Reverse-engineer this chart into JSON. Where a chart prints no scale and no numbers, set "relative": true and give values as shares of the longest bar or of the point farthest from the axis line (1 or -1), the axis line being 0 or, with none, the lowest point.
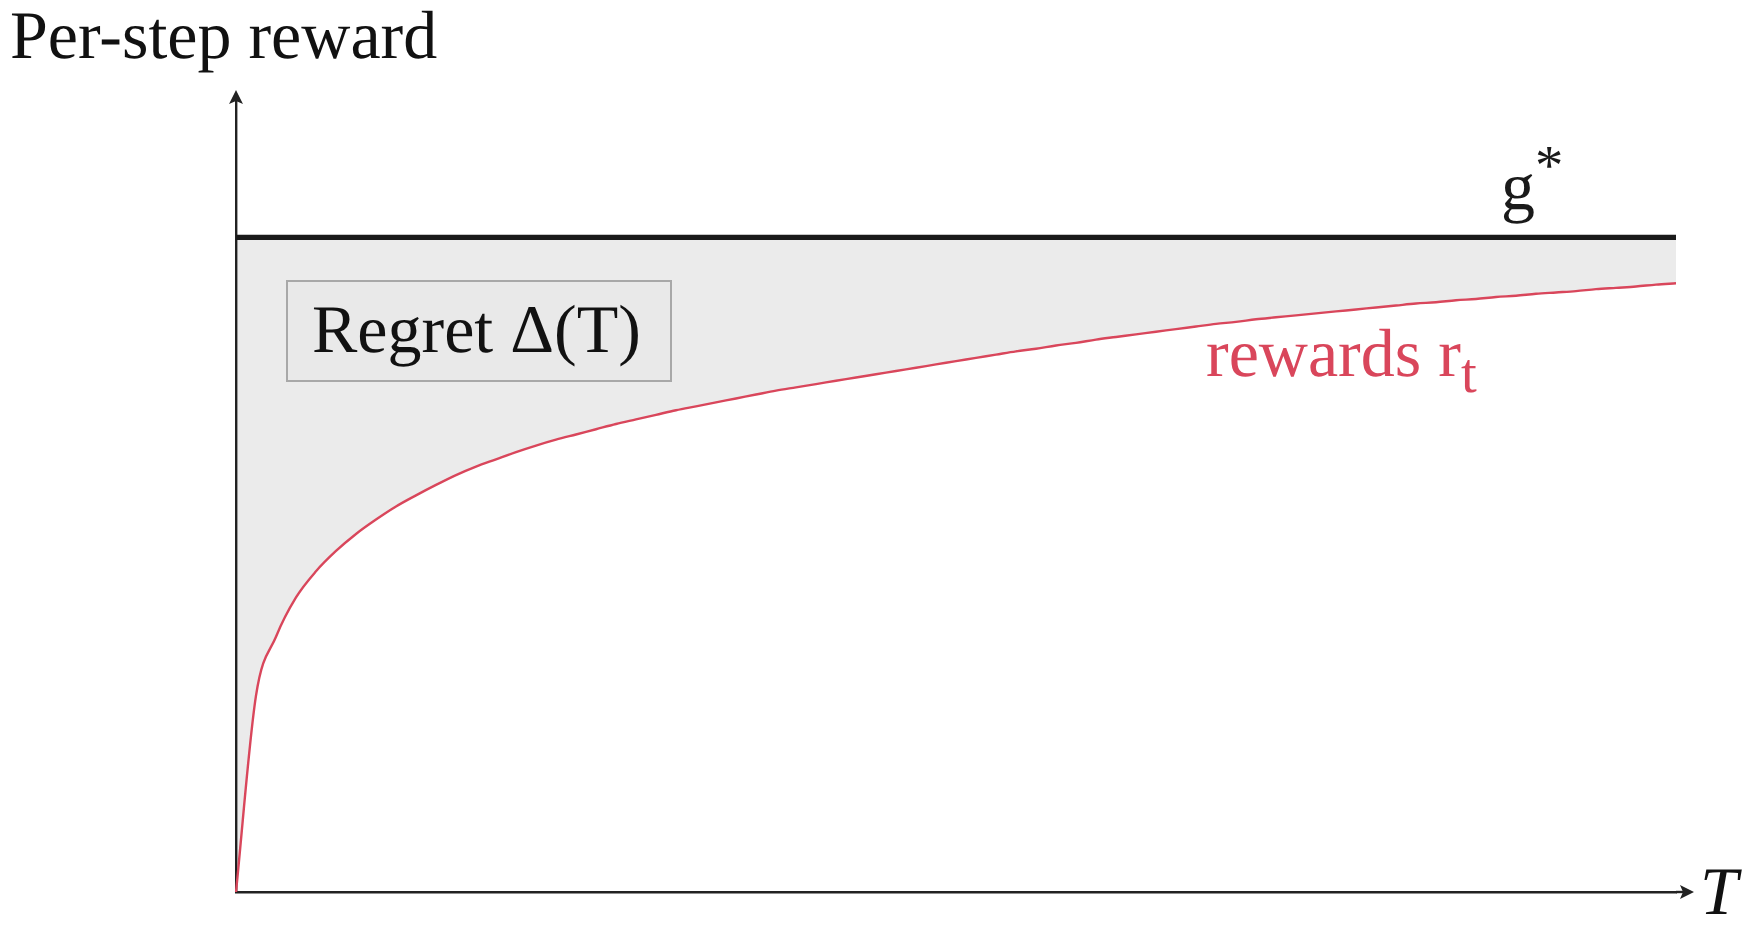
{
  "chart_data": {
    "type": "line",
    "relative": true,
    "ylabel": "Per-step reward",
    "xlabel": "T",
    "annotations": [
      "Regret Δ(T)"
    ],
    "legend": false,
    "grid": false,
    "marker": "none",
    "line_style": "solid",
    "categories": [
      null,
      null,
      null,
      null,
      null,
      null,
      null,
      null,
      null,
      null,
      null,
      null,
      null,
      null,
      null,
      null,
      null,
      null,
      null,
      null,
      null,
      null,
      null,
      null,
      null,
      null,
      null,
      null,
      null,
      null,
      null,
      null,
      null,
      null,
      null,
      null,
      null,
      null,
      null,
      null,
      null,
      null,
      null,
      null,
      null,
      null,
      null,
      null,
      null,
      null,
      null,
      null,
      null,
      null,
      null,
      null,
      null,
      null,
      null,
      null,
      null,
      null,
      null,
      null,
      null,
      null,
      null,
      null,
      null,
      null,
      null,
      null,
      null
    ],
    "series": [
      {
        "name": "g$^{*}$",
        "color": "#1a1a1a",
        "values": [
          1,
          1,
          1,
          1,
          1,
          1,
          1,
          1,
          1,
          1,
          1,
          1,
          1,
          1,
          1,
          1,
          1,
          1,
          1,
          1,
          1,
          1,
          1,
          1,
          1,
          1,
          1,
          1,
          1,
          1,
          1,
          1,
          1,
          1,
          1,
          1,
          1,
          1,
          1,
          1,
          1,
          1,
          1,
          1,
          1,
          1,
          1,
          1,
          1,
          1,
          1,
          1,
          1,
          1,
          1,
          1,
          1,
          1,
          1,
          1,
          1,
          1,
          1,
          1,
          1,
          1,
          1,
          1,
          1,
          1,
          1,
          1,
          1
        ]
      },
      {
        "name": "rewards r$_{t}$",
        "color": "#d9465b",
        "values": [
          0,
          0.3,
          0.39,
          0.45,
          0.49,
          0.521,
          0.547,
          0.569,
          0.589,
          0.606,
          0.622,
          0.637,
          0.65,
          0.661,
          0.672,
          0.682,
          0.691,
          0.699,
          0.707,
          0.715,
          0.722,
          0.729,
          0.736,
          0.742,
          0.748,
          0.754,
          0.76,
          0.766,
          0.771,
          0.776,
          0.781,
          0.786,
          0.791,
          0.796,
          0.801,
          0.806,
          0.811,
          0.816,
          0.821,
          0.826,
          0.83,
          0.835,
          0.839,
          0.844,
          0.848,
          0.852,
          0.856,
          0.86,
          0.864,
          0.868,
          0.871,
          0.875,
          0.878,
          0.881,
          0.884,
          0.887,
          0.89,
          0.893,
          0.896,
          0.899,
          0.901,
          0.904,
          0.906,
          0.909,
          0.911,
          0.914,
          0.916,
          0.918,
          0.921,
          0.923,
          0.925,
          0.928,
          0.93
        ],
        "lower": [
          0,
          0.3,
          0.39,
          0.45,
          0.49,
          0.521,
          0.547,
          0.569,
          0.589,
          0.606,
          0.622,
          0.637,
          0.65,
          0.661,
          0.672,
          0.682,
          0.691,
          0.699,
          0.707,
          0.715,
          0.722,
          0.729,
          0.736,
          0.742,
          0.748,
          0.754,
          0.76,
          0.766,
          0.771,
          0.776,
          0.781,
          0.786,
          0.791,
          0.796,
          0.801,
          0.806,
          0.811,
          0.816,
          0.821,
          0.826,
          0.83,
          0.835,
          0.839,
          0.844,
          0.848,
          0.852,
          0.856,
          0.86,
          0.864,
          0.868,
          0.871,
          0.875,
          0.878,
          0.881,
          0.884,
          0.887,
          0.89,
          0.893,
          0.896,
          0.899,
          0.901,
          0.904,
          0.906,
          0.909,
          0.911,
          0.914,
          0.916,
          0.918,
          0.921,
          0.923,
          0.925,
          0.928,
          0.93
        ],
        "upper": [
          1,
          1,
          1,
          1,
          1,
          1,
          1,
          1,
          1,
          1,
          1,
          1,
          1,
          1,
          1,
          1,
          1,
          1,
          1,
          1,
          1,
          1,
          1,
          1,
          1,
          1,
          1,
          1,
          1,
          1,
          1,
          1,
          1,
          1,
          1,
          1,
          1,
          1,
          1,
          1,
          1,
          1,
          1,
          1,
          1,
          1,
          1,
          1,
          1,
          1,
          1,
          1,
          1,
          1,
          1,
          1,
          1,
          1,
          1,
          1,
          1,
          1,
          1,
          1,
          1,
          1,
          1,
          1,
          1,
          1,
          1,
          1,
          1
        ]
      }
    ]
  }
}
